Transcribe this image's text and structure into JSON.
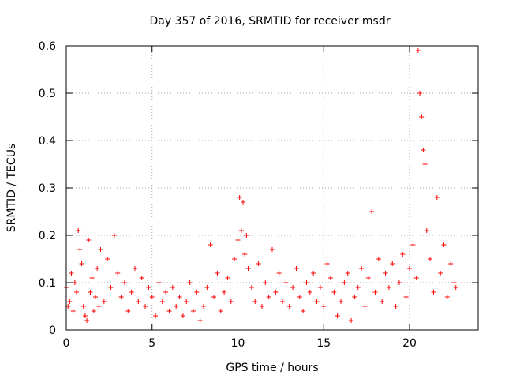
{
  "chart_data": {
    "type": "scatter",
    "title": "Day 357 of 2016, SRMTID for receiver msdr",
    "xlabel": "GPS time / hours",
    "ylabel": "SRMTID / TECUs",
    "xlim": [
      0,
      24
    ],
    "ylim": [
      0,
      0.6
    ],
    "xticks": [
      0,
      5,
      10,
      15,
      20
    ],
    "yticks": [
      0,
      0.1,
      0.2,
      0.3,
      0.4,
      0.5,
      0.6
    ],
    "xtick_labels": [
      "0",
      "5",
      "10",
      "15",
      "20"
    ],
    "ytick_labels": [
      "0",
      "0.1",
      "0.2",
      "0.3",
      "0.4",
      "0.5",
      "0.6"
    ],
    "grid": true,
    "marker": "+",
    "color": "#ff0000",
    "series": [
      {
        "name": "SRMTID",
        "x": [
          0.0,
          0.1,
          0.2,
          0.3,
          0.4,
          0.5,
          0.6,
          0.7,
          0.8,
          0.9,
          1.0,
          1.1,
          1.2,
          1.3,
          1.4,
          1.5,
          1.6,
          1.7,
          1.8,
          1.9,
          2.0,
          2.2,
          2.4,
          2.6,
          2.8,
          3.0,
          3.2,
          3.4,
          3.6,
          3.8,
          4.0,
          4.2,
          4.4,
          4.6,
          4.8,
          5.0,
          5.2,
          5.4,
          5.6,
          5.8,
          6.0,
          6.2,
          6.4,
          6.6,
          6.8,
          7.0,
          7.2,
          7.4,
          7.6,
          7.8,
          8.0,
          8.2,
          8.4,
          8.6,
          8.8,
          9.0,
          9.2,
          9.4,
          9.6,
          9.8,
          10.0,
          10.1,
          10.2,
          10.3,
          10.4,
          10.5,
          10.6,
          10.8,
          11.0,
          11.2,
          11.4,
          11.6,
          11.8,
          12.0,
          12.2,
          12.4,
          12.6,
          12.8,
          13.0,
          13.2,
          13.4,
          13.6,
          13.8,
          14.0,
          14.2,
          14.4,
          14.6,
          14.8,
          15.0,
          15.2,
          15.4,
          15.6,
          15.8,
          16.0,
          16.2,
          16.4,
          16.6,
          16.8,
          17.0,
          17.2,
          17.4,
          17.6,
          17.8,
          18.0,
          18.2,
          18.4,
          18.6,
          18.8,
          19.0,
          19.2,
          19.4,
          19.6,
          19.8,
          20.0,
          20.2,
          20.4,
          20.5,
          20.6,
          20.7,
          20.8,
          20.9,
          21.0,
          21.2,
          21.4,
          21.6,
          21.8,
          22.0,
          22.2,
          22.4,
          22.6,
          22.7
        ],
        "y": [
          0.09,
          0.05,
          0.06,
          0.12,
          0.04,
          0.1,
          0.08,
          0.21,
          0.17,
          0.14,
          0.05,
          0.03,
          0.02,
          0.19,
          0.08,
          0.11,
          0.04,
          0.07,
          0.13,
          0.05,
          0.17,
          0.06,
          0.15,
          0.09,
          0.2,
          0.12,
          0.07,
          0.1,
          0.04,
          0.08,
          0.13,
          0.06,
          0.11,
          0.05,
          0.09,
          0.07,
          0.03,
          0.1,
          0.06,
          0.08,
          0.04,
          0.09,
          0.05,
          0.07,
          0.03,
          0.06,
          0.1,
          0.04,
          0.08,
          0.02,
          0.05,
          0.09,
          0.18,
          0.07,
          0.12,
          0.04,
          0.08,
          0.11,
          0.06,
          0.15,
          0.19,
          0.28,
          0.21,
          0.27,
          0.16,
          0.2,
          0.13,
          0.09,
          0.06,
          0.14,
          0.05,
          0.1,
          0.07,
          0.17,
          0.08,
          0.12,
          0.06,
          0.1,
          0.05,
          0.09,
          0.13,
          0.07,
          0.04,
          0.1,
          0.08,
          0.12,
          0.06,
          0.09,
          0.05,
          0.14,
          0.11,
          0.08,
          0.03,
          0.06,
          0.1,
          0.12,
          0.02,
          0.07,
          0.09,
          0.13,
          0.05,
          0.11,
          0.25,
          0.08,
          0.15,
          0.06,
          0.12,
          0.09,
          0.14,
          0.05,
          0.1,
          0.16,
          0.07,
          0.13,
          0.18,
          0.11,
          0.59,
          0.5,
          0.45,
          0.38,
          0.35,
          0.21,
          0.15,
          0.08,
          0.28,
          0.12,
          0.18,
          0.07,
          0.14,
          0.1,
          0.09
        ],
        "color": "#ff0000"
      }
    ]
  }
}
